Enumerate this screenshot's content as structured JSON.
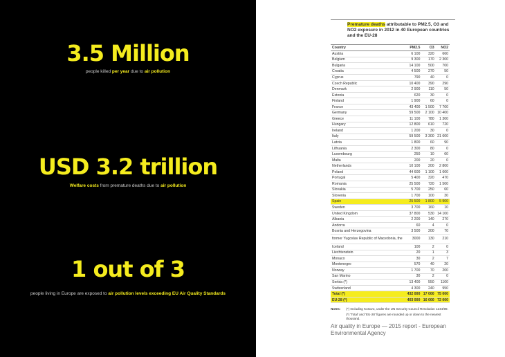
{
  "stats": [
    {
      "headline": "3.5 Million",
      "pre": "people killed ",
      "b1": "per year",
      "mid": " due to ",
      "b2": "air pollution"
    },
    {
      "headline": "USD 3.2 trillion",
      "pre": "",
      "b1": "Welfare costs",
      "mid": " from premature deaths due to ",
      "b2": "air pollution"
    },
    {
      "headline": "1 out of 3",
      "pre": "people living in Europe are exposed to ",
      "b1": "air pollution levels exceeding EU Air Quality Standards",
      "mid": "",
      "b2": ""
    }
  ],
  "table": {
    "title_highlight": "Premature deaths",
    "title_rest": " attributable to PM2.5, O3 and NO2 exposure in 2012 in 40 European countries and the EU-28",
    "headers": [
      "Country",
      "PM2.5",
      "O3",
      "NO2"
    ],
    "rows": [
      [
        "Austria",
        "6 100",
        "320",
        "660"
      ],
      [
        "Belgium",
        "9 300",
        "170",
        "2 300"
      ],
      [
        "Bulgaria",
        "14 100",
        "500",
        "700"
      ],
      [
        "Croatia",
        "4 500",
        "270",
        "50"
      ],
      [
        "Cyprus",
        "790",
        "40",
        "0"
      ],
      [
        "Czech Republic",
        "10 400",
        "390",
        "290"
      ],
      [
        "Denmark",
        "2 900",
        "110",
        "50"
      ],
      [
        "Estonia",
        "620",
        "30",
        "0"
      ],
      [
        "Finland",
        "1 900",
        "60",
        "0"
      ],
      [
        "France",
        "43 400",
        "1 500",
        "7 700"
      ],
      [
        "Germany",
        "59 500",
        "2 100",
        "10 400"
      ],
      [
        "Greece",
        "11 100",
        "780",
        "1 300"
      ],
      [
        "Hungary",
        "12 800",
        "610",
        "720"
      ],
      [
        "Ireland",
        "1 200",
        "30",
        "0"
      ],
      [
        "Italy",
        "59 500",
        "3 300",
        "21 600"
      ],
      [
        "Latvia",
        "1 800",
        "60",
        "90"
      ],
      [
        "Lithuania",
        "2 300",
        "80",
        "0"
      ],
      [
        "Luxembourg",
        "250",
        "10",
        "60"
      ],
      [
        "Malta",
        "200",
        "20",
        "0"
      ],
      [
        "Netherlands",
        "10 100",
        "200",
        "2 800"
      ],
      [
        "Poland",
        "44 600",
        "1 100",
        "1 600"
      ],
      [
        "Portugal",
        "5 400",
        "320",
        "470"
      ],
      [
        "Romania",
        "25 500",
        "720",
        "1 500"
      ],
      [
        "Slovakia",
        "5 700",
        "250",
        "60"
      ],
      [
        "Slovenia",
        "1 700",
        "100",
        "30"
      ],
      [
        "Spain",
        "25 500",
        "1 800",
        "5 900"
      ],
      [
        "Sweden",
        "3 700",
        "160",
        "10"
      ],
      [
        "United Kingdom",
        "37 800",
        "530",
        "14 100"
      ],
      [
        "Albania",
        "2 200",
        "140",
        "270"
      ],
      [
        "Andorra",
        "60",
        "4",
        "0"
      ],
      [
        "Bosnia and Herzegovina",
        "3 500",
        "200",
        "70"
      ],
      [
        "former Yugoslav Republic of Macedonia, the",
        "3000",
        "130",
        "210"
      ],
      [
        "Iceland",
        "100",
        "2",
        "0"
      ],
      [
        "Liechtenstein",
        "20",
        "1",
        "3"
      ],
      [
        "Monaco",
        "30",
        "2",
        "7"
      ],
      [
        "Montenegro",
        "570",
        "40",
        "20"
      ],
      [
        "Norway",
        "1 700",
        "70",
        "200"
      ],
      [
        "San Marino",
        "30",
        "2",
        "0"
      ],
      [
        "Serbia (*)",
        "13 400",
        "550",
        "1100"
      ],
      [
        "Switzerland",
        "4 300",
        "240",
        "950"
      ]
    ],
    "highlight_row": "Spain",
    "totals": [
      [
        "Total (*)",
        "432 000",
        "17 000",
        "75 000"
      ],
      [
        "EU-28 (*)",
        "403 000",
        "16 000",
        "72 000"
      ]
    ],
    "notes_label": "Notes:",
    "notes": [
      "(*) Including Kosovo, under the UN Security Council Resolution 1244/99.",
      "(*) 'Total' and 'EU-28' figures are rounded up or down to the nearest thousand."
    ],
    "source": "Air quality in Europe — 2015 report - European Environmental Agency"
  }
}
